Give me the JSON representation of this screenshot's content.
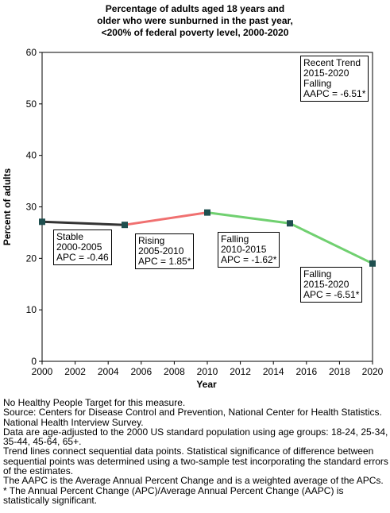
{
  "chart_data": {
    "type": "line",
    "title_lines": [
      "Percentage of adults aged 18 years and",
      "older who were sunburned in the past year,",
      "<200% of federal poverty level,  2000-2020"
    ],
    "xlabel": "Year",
    "ylabel": "Percent of adults",
    "xlim": [
      2000,
      2020
    ],
    "ylim": [
      0,
      60
    ],
    "x_ticks": [
      2000,
      2002,
      2004,
      2006,
      2008,
      2010,
      2012,
      2014,
      2016,
      2018,
      2020
    ],
    "y_ticks": [
      0,
      10,
      20,
      30,
      40,
      50,
      60
    ],
    "grid": false,
    "points": [
      {
        "x": 2000,
        "y": 27.1
      },
      {
        "x": 2005,
        "y": 26.5
      },
      {
        "x": 2010,
        "y": 28.9
      },
      {
        "x": 2015,
        "y": 26.8
      },
      {
        "x": 2020,
        "y": 19.0
      }
    ],
    "segments": [
      {
        "from": 0,
        "to": 1,
        "trend": "Stable",
        "color": "#333333"
      },
      {
        "from": 1,
        "to": 2,
        "trend": "Rising",
        "color": "#f07070"
      },
      {
        "from": 2,
        "to": 3,
        "trend": "Falling",
        "color": "#70d070"
      },
      {
        "from": 3,
        "to": 4,
        "trend": "Falling",
        "color": "#70d070"
      }
    ],
    "marker_color": "#1f4f4f",
    "annotations": [
      {
        "id": "stable",
        "lines": [
          "Stable",
          "2000-2005",
          "APC = -0.46"
        ]
      },
      {
        "id": "rising",
        "lines": [
          "Rising",
          "2005-2010",
          "APC =  1.85*"
        ]
      },
      {
        "id": "falling1",
        "lines": [
          "Falling",
          "2010-2015",
          "APC = -1.62*"
        ]
      },
      {
        "id": "falling2",
        "lines": [
          "Falling",
          "2015-2020",
          "APC = -6.51*"
        ]
      },
      {
        "id": "recent",
        "lines": [
          "Recent Trend",
          "2015-2020",
          "Falling",
          "AAPC = -6.51*"
        ]
      }
    ]
  },
  "footnotes": [
    "No Healthy People Target for this measure.",
    "Source: Centers for Disease Control and Prevention, National Center for Health Statistics. National Health Interview Survey.",
    "Data are age-adjusted to the 2000 US standard population using age groups: 18-24, 25-34, 35-44, 45-64, 65+.",
    "Trend lines connect sequential data points. Statistical significance of difference between sequential points was determined using a two-sample test incorporating the standard errors of the estimates.",
    "The AAPC is the Average Annual Percent Change and is a weighted average of the APCs.",
    "* The Annual Percent Change (APC)/Average Annual Percent Change (AAPC) is statistically significant."
  ]
}
